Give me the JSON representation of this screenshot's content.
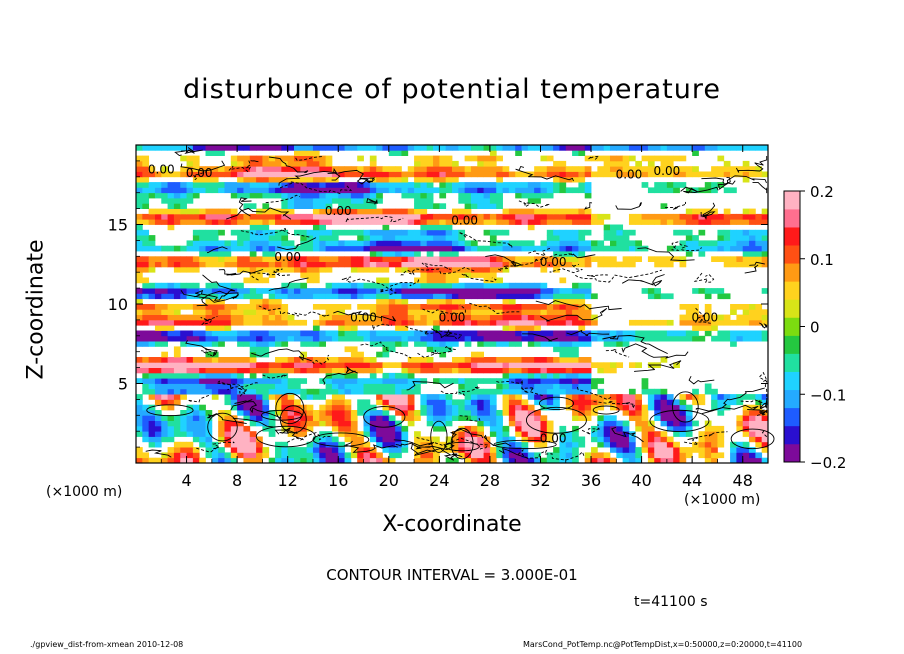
{
  "chart_data": {
    "type": "heatmap",
    "title": "disturbunce of potential temperature",
    "xlabel": "X-coordinate",
    "ylabel": "Z-coordinate",
    "x_unit": "(×1000 m)",
    "x_ticks": [
      4,
      8,
      12,
      16,
      20,
      24,
      28,
      32,
      36,
      40,
      44,
      48
    ],
    "y_ticks": [
      5,
      10,
      15
    ],
    "xlim": [
      0,
      50
    ],
    "ylim": [
      0,
      20
    ],
    "colorbar_ticks": [
      0.2,
      0.1,
      0,
      -0.1,
      -0.2
    ],
    "colorbar_tick_labels": [
      "0.2",
      "0.1",
      "0",
      "−0.1",
      "−0.2"
    ],
    "colorbar_range": [
      -0.2,
      0.2
    ],
    "contour_interval_text": "CONTOUR INTERVAL = 3.000E-01",
    "contour_label": "0.00",
    "contour_label_positions": [
      [
        2,
        18.2
      ],
      [
        5,
        18.0
      ],
      [
        16,
        15.6
      ],
      [
        26,
        15.0
      ],
      [
        33,
        12.4
      ],
      [
        39,
        17.9
      ],
      [
        42,
        18.1
      ],
      [
        18,
        8.9
      ],
      [
        25,
        8.9
      ],
      [
        45,
        8.9
      ],
      [
        33,
        1.3
      ],
      [
        12,
        12.7
      ]
    ],
    "time_label": "t=41100 s",
    "colormap": [
      "#7d0a9a",
      "#2a0fd0",
      "#1e5cff",
      "#24aaff",
      "#1fd2ff",
      "#20e0a0",
      "#24c840",
      "#7cdc10",
      "#d8e418",
      "#ffd21e",
      "#ff9a14",
      "#ff5014",
      "#ff1a1a",
      "#ff6f8f",
      "#ffb2c2"
    ]
  },
  "footer": {
    "left": "./gpview_dist-from-xmean  2010-12-08",
    "right": "MarsCond_PotTemp.nc@PotTempDist,x=0:50000,z=0:20000,t=41100"
  }
}
